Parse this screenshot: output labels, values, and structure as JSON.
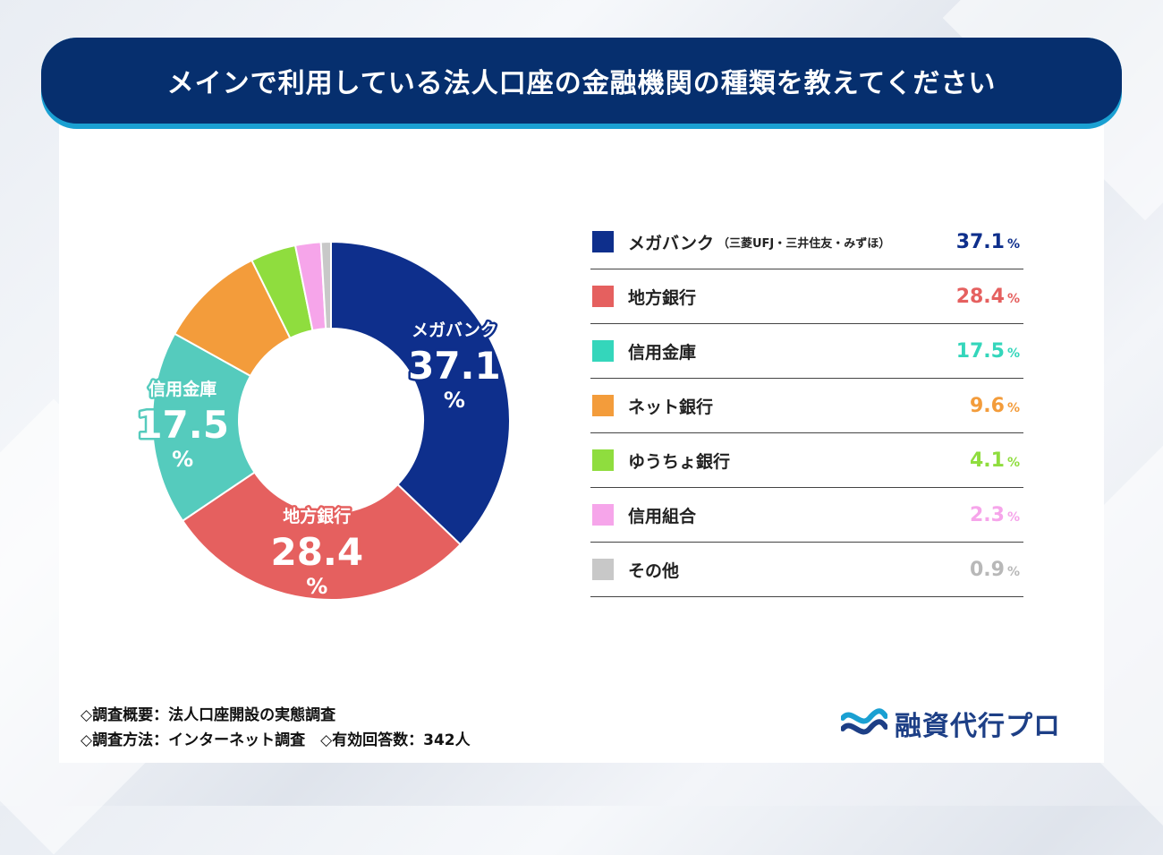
{
  "title": "メインで利用している法人口座の金融機関の種類を教えてください",
  "chart_data": {
    "type": "pie",
    "categories": [
      "メガバンク",
      "地方銀行",
      "信用金庫",
      "ネット銀行",
      "ゆうちょ銀行",
      "信用組合",
      "その他"
    ],
    "values": [
      37.1,
      28.4,
      17.5,
      9.6,
      4.1,
      2.3,
      0.9
    ],
    "unit": "%",
    "colors": [
      "#0e2f8c",
      "#e5605f",
      "#55cbbd",
      "#f39c3b",
      "#8fdd3e",
      "#f6a5ea",
      "#c8c8c8"
    ],
    "legend": [
      {
        "label": "メガバンク",
        "sub": "（三菱UFJ・三井住友・みずほ）",
        "value": "37.1",
        "pct": "%",
        "color": "#0e2f8c",
        "text_color": "#0e2f8c"
      },
      {
        "label": "地方銀行",
        "sub": "",
        "value": "28.4",
        "pct": "%",
        "color": "#e5605f",
        "text_color": "#e5605f"
      },
      {
        "label": "信用金庫",
        "sub": "",
        "value": "17.5",
        "pct": "%",
        "color": "#34d6bb",
        "text_color": "#34d6bb"
      },
      {
        "label": "ネット銀行",
        "sub": "",
        "value": "9.6",
        "pct": "%",
        "color": "#f39c3b",
        "text_color": "#f39c3b"
      },
      {
        "label": "ゆうちょ銀行",
        "sub": "",
        "value": "4.1",
        "pct": "%",
        "color": "#8fdd3e",
        "text_color": "#8fdd3e"
      },
      {
        "label": "信用組合",
        "sub": "",
        "value": "2.3",
        "pct": "%",
        "color": "#f6a5ea",
        "text_color": "#f6a5ea"
      },
      {
        "label": "その他",
        "sub": "",
        "value": "0.9",
        "pct": "%",
        "color": "#c8c8c8",
        "text_color": "#b8b8b8"
      }
    ],
    "donut_labels": [
      {
        "index": 0,
        "name": "メガバンク",
        "value": "37.1",
        "pct": "%"
      },
      {
        "index": 1,
        "name": "地方銀行",
        "value": "28.4",
        "pct": "%"
      },
      {
        "index": 2,
        "name": "信用金庫",
        "value": "17.5",
        "pct": "%"
      }
    ]
  },
  "footnotes": {
    "line1": "◇調査概要：法人口座開設の実態調査",
    "line2": "◇調査方法：インターネット調査　◇有効回答数：342人"
  },
  "logo": {
    "text": "融資代行プロ",
    "icon": "wave-logo-icon"
  }
}
